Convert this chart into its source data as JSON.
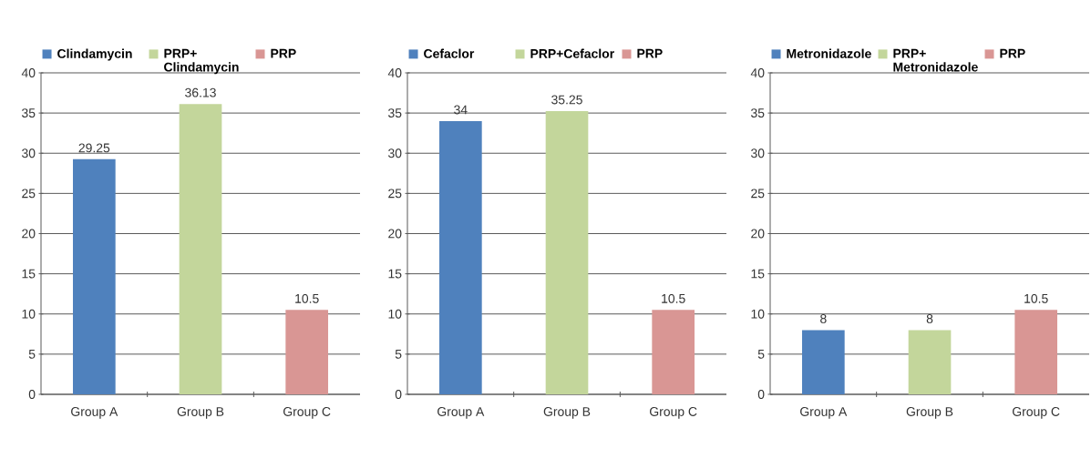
{
  "chart_data": [
    {
      "type": "bar",
      "categories": [
        "Group A",
        "Group B",
        "Group C"
      ],
      "series": [
        {
          "name": "Clindamycin",
          "color": "#4f81bd",
          "values": [
            29.25,
            null,
            null
          ]
        },
        {
          "name": "PRP+ Clindamycin",
          "color": "#c3d69b",
          "values": [
            null,
            36.13,
            null
          ]
        },
        {
          "name": "PRP",
          "color": "#d99694",
          "values": [
            null,
            null,
            10.5
          ]
        }
      ],
      "ylim": [
        0,
        40
      ],
      "yticks": [
        0,
        5,
        10,
        15,
        20,
        25,
        30,
        35,
        40
      ],
      "grid": "y",
      "legend": "top",
      "data_labels": true
    },
    {
      "type": "bar",
      "categories": [
        "Group A",
        "Group B",
        "Group C"
      ],
      "series": [
        {
          "name": "Cefaclor",
          "color": "#4f81bd",
          "values": [
            34,
            null,
            null
          ]
        },
        {
          "name": "PRP+Cefaclor",
          "color": "#c3d69b",
          "values": [
            null,
            35.25,
            null
          ]
        },
        {
          "name": "PRP",
          "color": "#d99694",
          "values": [
            null,
            null,
            10.5
          ]
        }
      ],
      "ylim": [
        0,
        40
      ],
      "yticks": [
        0,
        5,
        10,
        15,
        20,
        25,
        30,
        35,
        40
      ],
      "grid": "y",
      "legend": "top",
      "data_labels": true
    },
    {
      "type": "bar",
      "categories": [
        "Group A",
        "Group B",
        "Group C"
      ],
      "series": [
        {
          "name": "Metronidazole",
          "color": "#4f81bd",
          "values": [
            8,
            null,
            null
          ]
        },
        {
          "name": "PRP+ Metronidazole",
          "color": "#c3d69b",
          "values": [
            null,
            8,
            null
          ]
        },
        {
          "name": "PRP",
          "color": "#d99694",
          "values": [
            null,
            null,
            10.5
          ]
        }
      ],
      "ylim": [
        0,
        40
      ],
      "yticks": [
        0,
        5,
        10,
        15,
        20,
        25,
        30,
        35,
        40
      ],
      "grid": "y",
      "legend": "top",
      "data_labels": true
    }
  ]
}
